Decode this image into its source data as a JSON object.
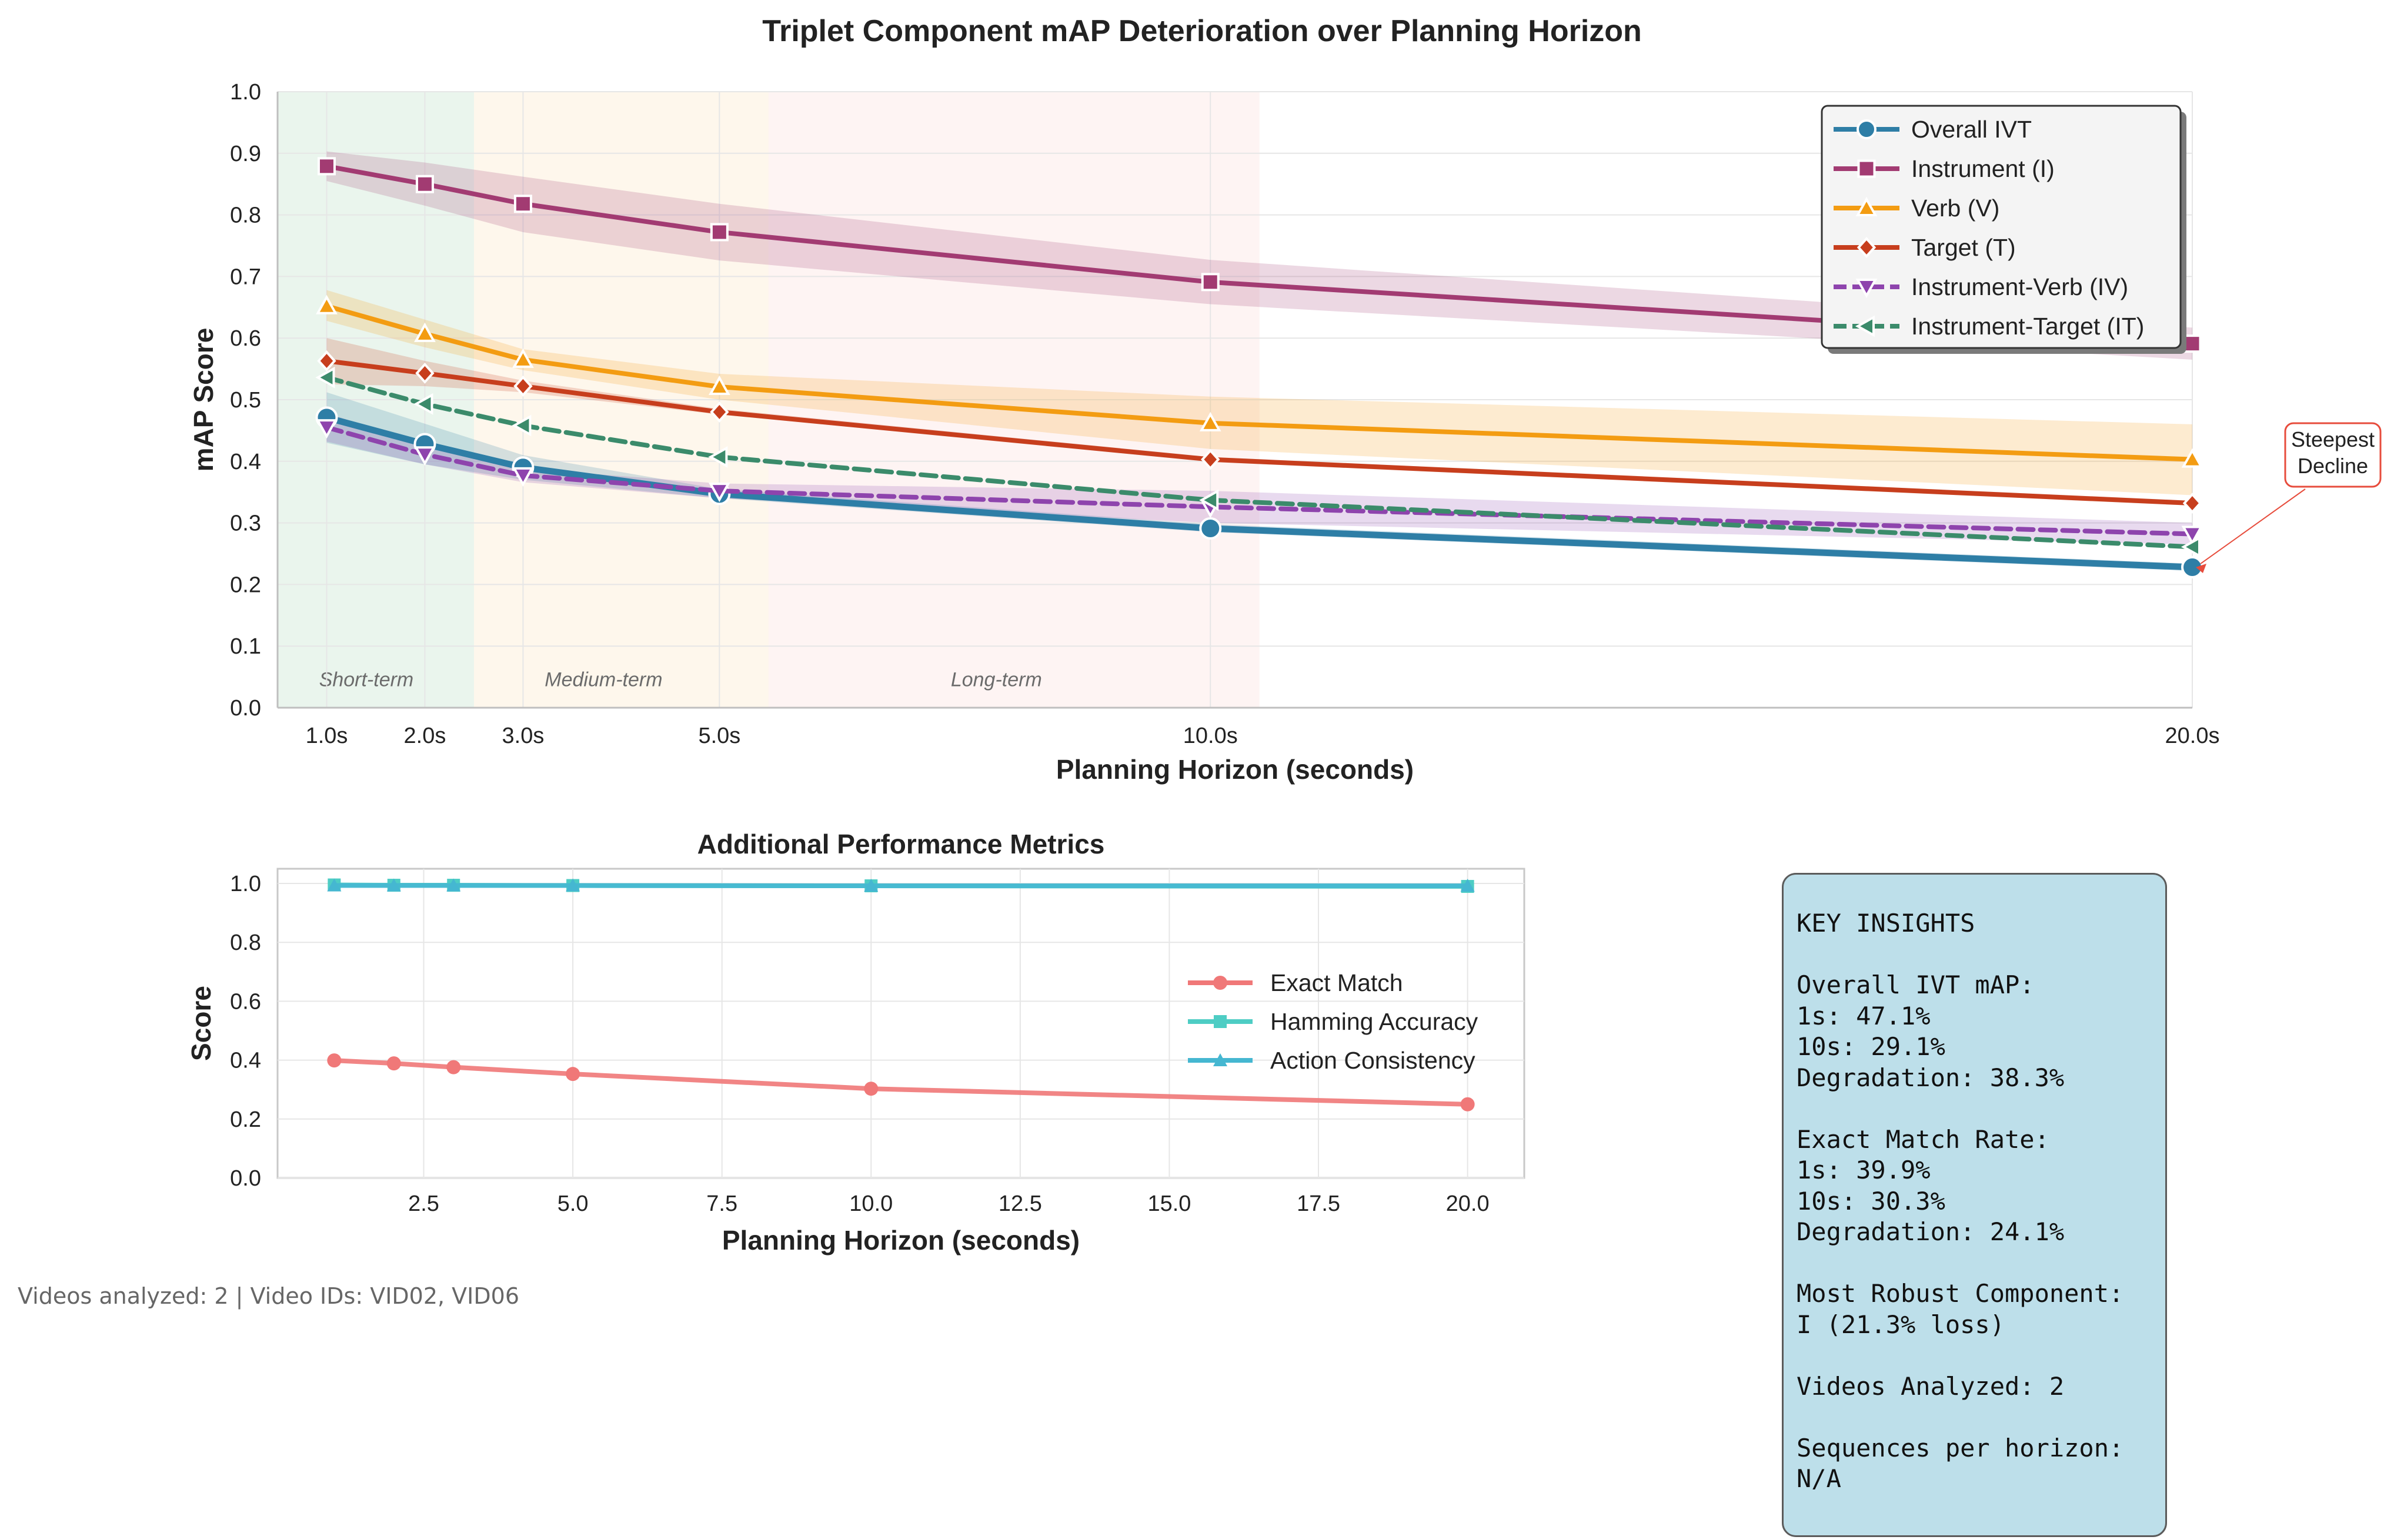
{
  "chart_data": [
    {
      "type": "line",
      "title": "Triplet Component mAP Deterioration over Planning Horizon",
      "xlabel": "Planning Horizon (seconds)",
      "ylabel": "mAP Score",
      "x": [
        1,
        2,
        3,
        5,
        10,
        20
      ],
      "xtick_labels": [
        "1.0s",
        "2.0s",
        "3.0s",
        "5.0s",
        "10.0s",
        "20.0s"
      ],
      "ylim": [
        0.0,
        1.0
      ],
      "yticks": [
        "0.0",
        "0.1",
        "0.2",
        "0.3",
        "0.4",
        "0.5",
        "0.6",
        "0.7",
        "0.8",
        "0.9",
        "1.0"
      ],
      "grid": true,
      "legend": "top-right",
      "regions": [
        {
          "label": "Short-term",
          "x0": 0.5,
          "x1": 2.5,
          "color": "#2e9e4f"
        },
        {
          "label": "Medium-term",
          "x0": 2.5,
          "x1": 5.5,
          "color": "#f5b041"
        },
        {
          "label": "Long-term",
          "x0": 5.5,
          "x1": 10.5,
          "color": "#f1948a"
        }
      ],
      "series": [
        {
          "name": "Overall IVT",
          "values": [
            0.471,
            0.428,
            0.39,
            0.347,
            0.291,
            0.228
          ],
          "lower": [
            0.43,
            0.395,
            0.37,
            0.34,
            0.285,
            0.222
          ],
          "upper": [
            0.512,
            0.461,
            0.41,
            0.355,
            0.298,
            0.234
          ],
          "color": "#2e7ea6",
          "marker": "circle",
          "dash": "solid",
          "band": true
        },
        {
          "name": "Instrument (I)",
          "values": [
            0.879,
            0.85,
            0.818,
            0.772,
            0.691,
            0.591
          ],
          "lower": [
            0.855,
            0.815,
            0.772,
            0.726,
            0.655,
            0.565
          ],
          "upper": [
            0.903,
            0.885,
            0.862,
            0.818,
            0.727,
            0.617
          ],
          "color": "#a23b72",
          "marker": "square",
          "dash": "solid",
          "band": true
        },
        {
          "name": "Verb (V)",
          "values": [
            0.652,
            0.607,
            0.565,
            0.521,
            0.462,
            0.403
          ],
          "lower": [
            0.628,
            0.585,
            0.548,
            0.5,
            0.42,
            0.345
          ],
          "upper": [
            0.678,
            0.63,
            0.582,
            0.542,
            0.505,
            0.46
          ],
          "color": "#f39c12",
          "marker": "triangle",
          "dash": "solid",
          "band": true
        },
        {
          "name": "Target (T)",
          "values": [
            0.563,
            0.543,
            0.522,
            0.48,
            0.403,
            0.332
          ],
          "lower": [
            0.525,
            0.522,
            0.512,
            0.476,
            0.399,
            0.328
          ],
          "upper": [
            0.6,
            0.563,
            0.531,
            0.485,
            0.407,
            0.336
          ],
          "color": "#c73e1d",
          "marker": "diamond",
          "dash": "solid",
          "band": true
        },
        {
          "name": "Instrument-Verb (IV)",
          "values": [
            0.455,
            0.411,
            0.377,
            0.352,
            0.326,
            0.282
          ],
          "lower": [
            0.432,
            0.395,
            0.366,
            0.34,
            0.3,
            0.265
          ],
          "upper": [
            0.478,
            0.428,
            0.388,
            0.364,
            0.352,
            0.3
          ],
          "color": "#8e44ad",
          "marker": "triangle-down",
          "dash": "dashed",
          "band": true
        },
        {
          "name": "Instrument-Target (IT)",
          "values": [
            0.536,
            0.493,
            0.458,
            0.407,
            0.337,
            0.261
          ],
          "lower": [
            0.515,
            0.48,
            0.452,
            0.404,
            0.334,
            0.258
          ],
          "upper": [
            0.557,
            0.506,
            0.464,
            0.41,
            0.34,
            0.264
          ],
          "color": "#3b8b6b",
          "marker": "triangle-left",
          "dash": "dashed",
          "band": false
        }
      ],
      "annotation": {
        "text_lines": [
          "Steepest",
          "Decline"
        ],
        "target_x": 20,
        "target_y": 0.228,
        "edge_color": "#e74c3c"
      }
    },
    {
      "type": "line",
      "title": "Additional Performance Metrics",
      "xlabel": "Planning Horizon (seconds)",
      "ylabel": "Score",
      "x": [
        1,
        2,
        3,
        5,
        10,
        20
      ],
      "xlim": [
        0.05,
        20.95
      ],
      "xticks": [
        "2.5",
        "5.0",
        "7.5",
        "10.0",
        "12.5",
        "15.0",
        "17.5",
        "20.0"
      ],
      "ylim": [
        0.0,
        1.05
      ],
      "yticks": [
        "0.0",
        "0.2",
        "0.4",
        "0.6",
        "0.8",
        "1.0"
      ],
      "grid": true,
      "legend": "center-right",
      "series": [
        {
          "name": "Exact Match",
          "values": [
            0.399,
            0.389,
            0.376,
            0.353,
            0.303,
            0.25
          ],
          "color": "#f07878",
          "marker": "circle"
        },
        {
          "name": "Hamming Accuracy",
          "values": [
            0.995,
            0.994,
            0.994,
            0.993,
            0.992,
            0.99
          ],
          "color": "#4ecdc4",
          "marker": "square"
        },
        {
          "name": "Action Consistency",
          "values": [
            0.993,
            0.993,
            0.993,
            0.993,
            0.992,
            0.992
          ],
          "color": "#45b7d1",
          "marker": "triangle"
        }
      ]
    }
  ],
  "insights": {
    "lines": [
      "KEY INSIGHTS",
      "",
      "Overall IVT mAP:",
      "1s: 47.1%",
      "10s: 29.1%",
      "Degradation: 38.3%",
      "",
      "Exact Match Rate:",
      "1s: 39.9%",
      "10s: 30.3%",
      "Degradation: 24.1%",
      "",
      "Most Robust Component:",
      "I (21.3% loss)",
      "",
      "Videos Analyzed: 2",
      "",
      "Sequences per horizon:",
      "N/A"
    ]
  },
  "footer": "Videos analyzed: 2 | Video IDs: VID02, VID06"
}
